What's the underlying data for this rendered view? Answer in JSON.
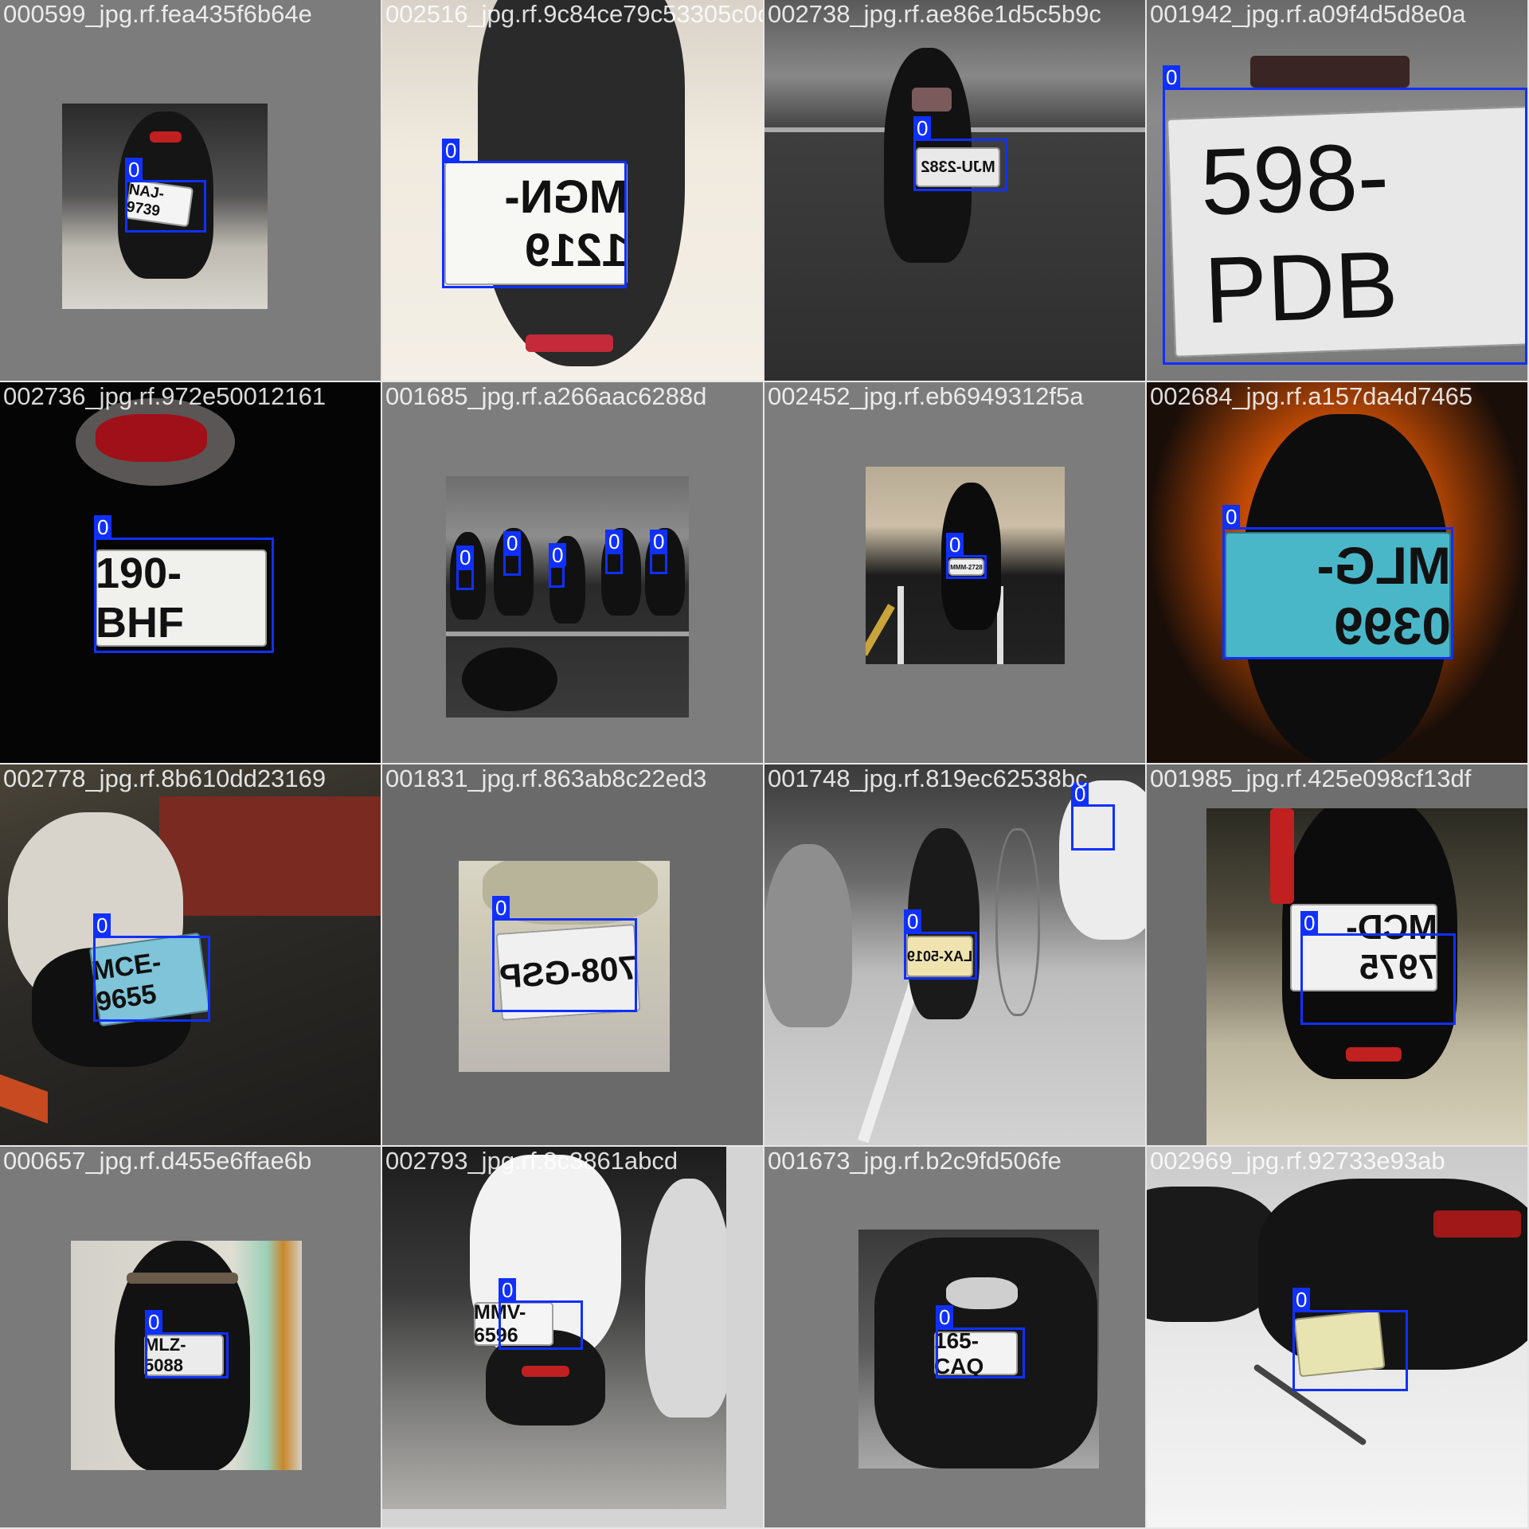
{
  "class_id_label": "0",
  "box_color": "#1030ff",
  "tiles": [
    {
      "file": "000599_jpg.rf.fea435f6b64e",
      "plate_text": "NAJ-9739"
    },
    {
      "file": "002516_jpg.rf.9c84ce79c53305c0c",
      "plate_text": "MGN-1219"
    },
    {
      "file": "002738_jpg.rf.ae86e1d5c5b9c",
      "plate_text": "MJU-2382"
    },
    {
      "file": "001942_jpg.rf.a09f4d5d8e0a",
      "plate_text": "598-PDB"
    },
    {
      "file": "002736_jpg.rf.972e50012161",
      "plate_text": "190-BHF"
    },
    {
      "file": "001685_jpg.rf.a266aac6288d",
      "plate_text": ""
    },
    {
      "file": "002452_jpg.rf.eb6949312f5a",
      "plate_text": "MMM-2728"
    },
    {
      "file": "002684_jpg.rf.a157da4d7465",
      "plate_text": "MLG-0399"
    },
    {
      "file": "002778_jpg.rf.8b610dd23169",
      "plate_text": "MCE-9655"
    },
    {
      "file": "001831_jpg.rf.863ab8c22ed3",
      "plate_text": "708-GSP"
    },
    {
      "file": "001748_jpg.rf.819ec62538bc",
      "plate_text": "LAX-5019"
    },
    {
      "file": "001985_jpg.rf.425e098cf13df",
      "plate_text": "MCD-7975"
    },
    {
      "file": "000657_jpg.rf.d455e6ffae6b",
      "plate_text": "MLZ-5088"
    },
    {
      "file": "002793_jpg.rf.8c3861abcd",
      "plate_text": "MMV-6596"
    },
    {
      "file": "001673_jpg.rf.b2c9fd506fe",
      "plate_text": "165-CAQ"
    },
    {
      "file": "002969_jpg.rf.92733e93ab",
      "plate_text": ""
    }
  ]
}
